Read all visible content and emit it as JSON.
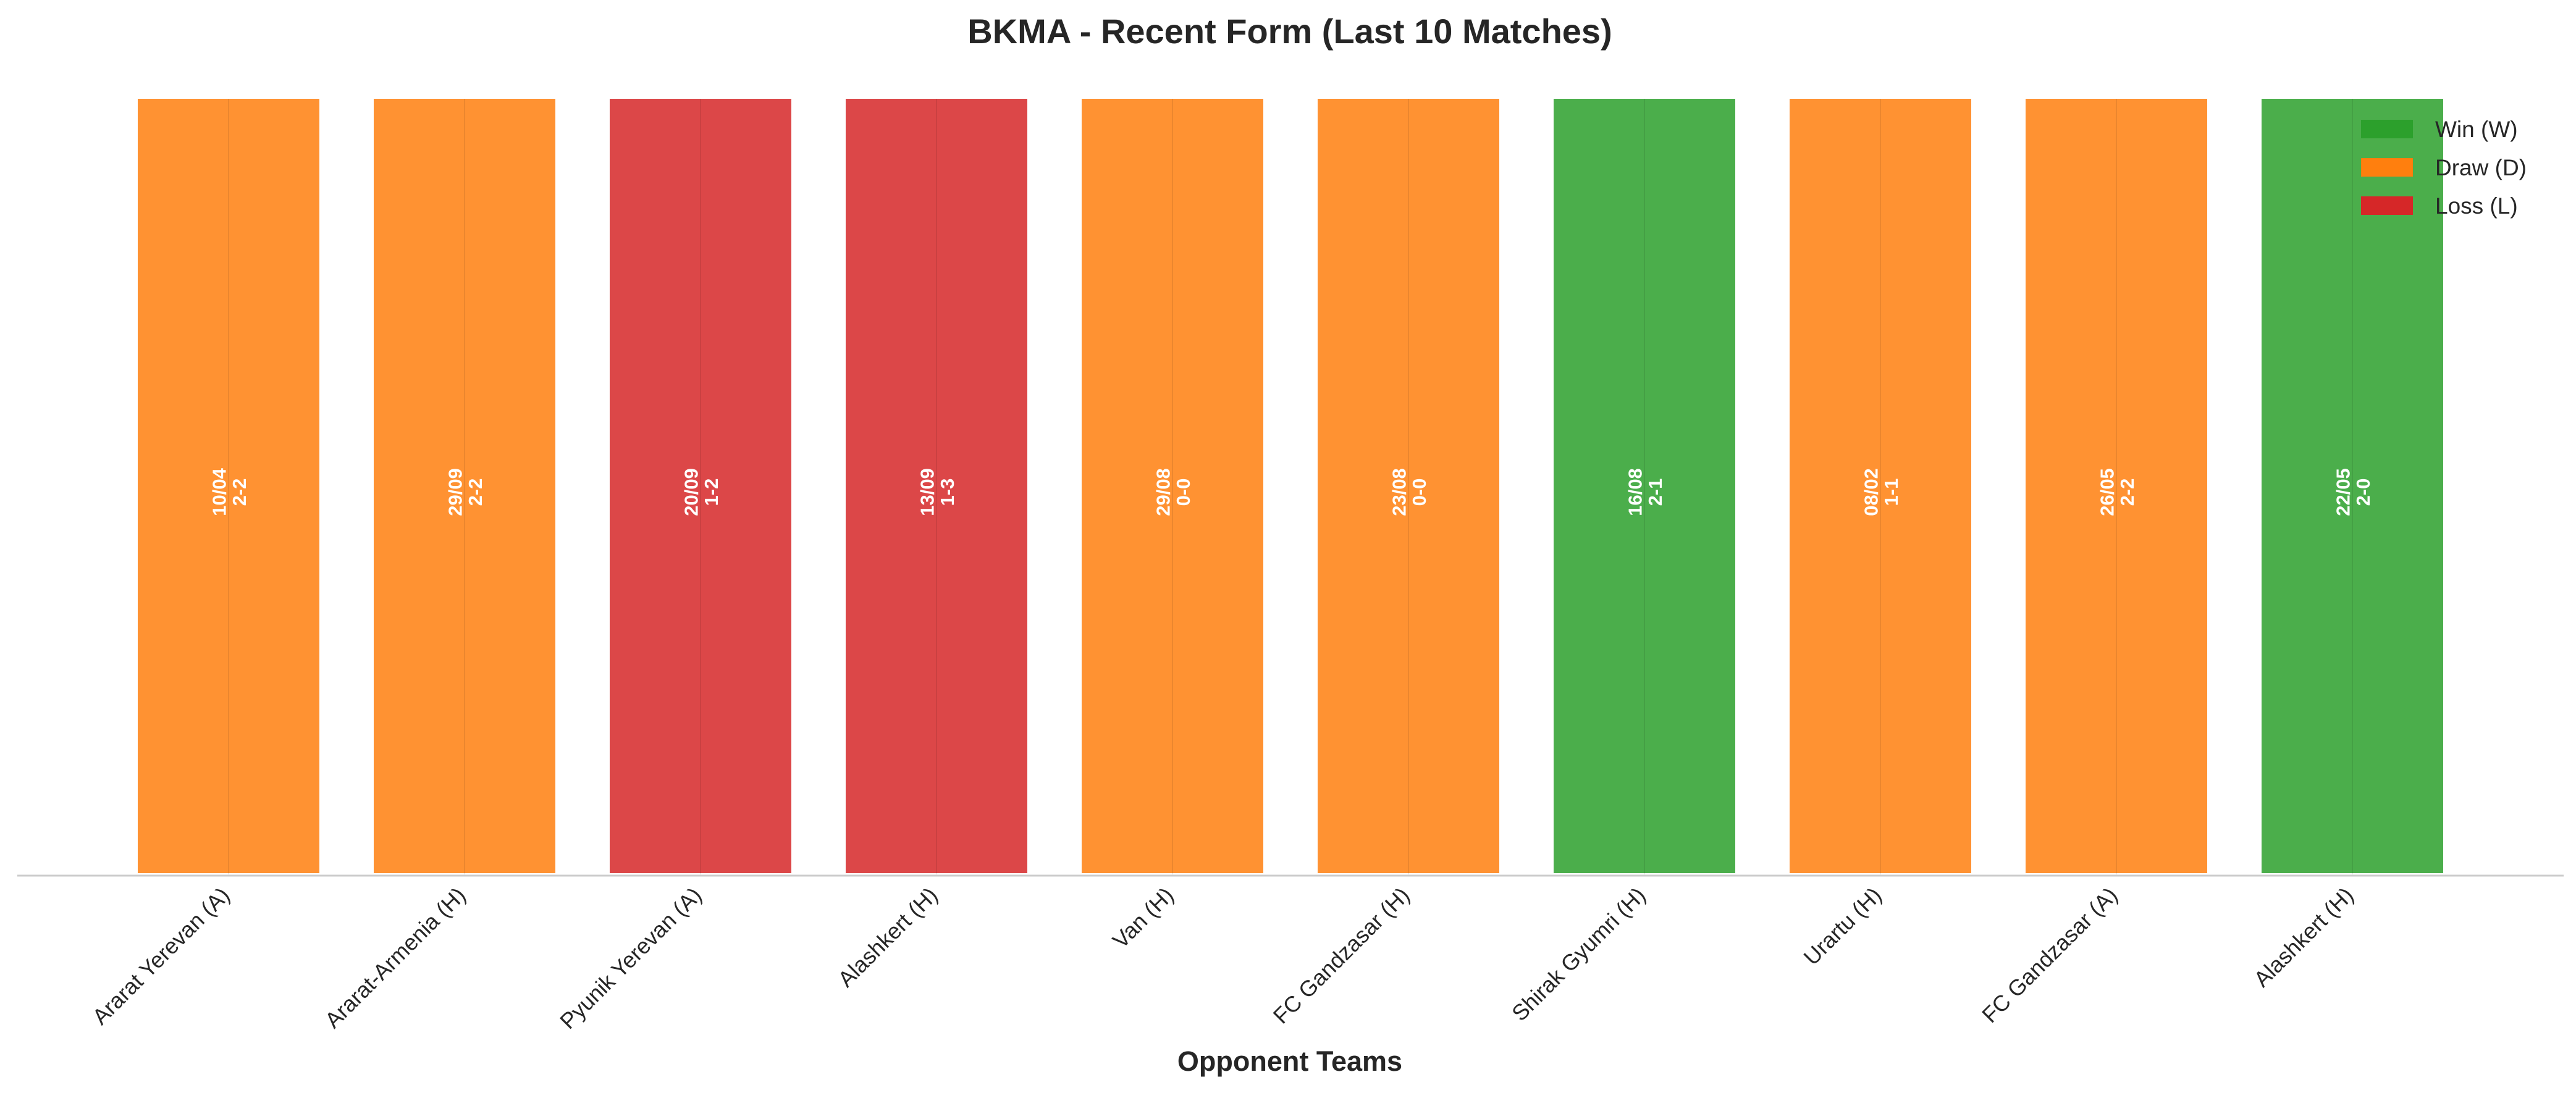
{
  "chart_data": {
    "type": "bar",
    "title": "BKMA - Recent Form (Last 10 Matches)",
    "xlabel": "Opponent Teams",
    "ylabel": "",
    "ylim": [
      0,
      1
    ],
    "grid": false,
    "legend_position": "top-right",
    "categories": [
      "Ararat Yerevan (A)",
      "Ararat-Armenia (H)",
      "Pyunik Yerevan (A)",
      "Alashkert (H)",
      "Van (H)",
      "FC Gandzasar (H)",
      "Shirak Gyumri (H)",
      "Urartu (H)",
      "FC Gandzasar (A)",
      "Alashkert (H)"
    ],
    "values": [
      1,
      1,
      1,
      1,
      1,
      1,
      1,
      1,
      1,
      1
    ],
    "results": [
      "D",
      "D",
      "L",
      "L",
      "D",
      "D",
      "W",
      "D",
      "D",
      "W"
    ],
    "dates": [
      "10/04",
      "29/09",
      "20/09",
      "13/09",
      "29/08",
      "23/08",
      "16/08",
      "08/02",
      "26/05",
      "22/05"
    ],
    "scores": [
      "2-2",
      "2-2",
      "1-2",
      "1-3",
      "0-0",
      "0-0",
      "2-1",
      "1-1",
      "2-2",
      "2-0"
    ],
    "legend": [
      {
        "key": "W",
        "label": "Win (W)"
      },
      {
        "key": "D",
        "label": "Draw (D)"
      },
      {
        "key": "L",
        "label": "Loss (L)"
      }
    ],
    "colors": {
      "W": "#2ca02c",
      "D": "#ff7f0e",
      "L": "#d62728",
      "axis": "#cccccc"
    }
  }
}
